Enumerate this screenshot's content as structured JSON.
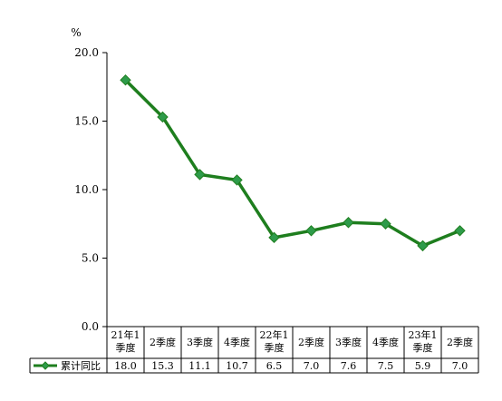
{
  "chart_data": {
    "type": "line",
    "unit_label": "%",
    "ylim": [
      0,
      20
    ],
    "yticks": [
      "0.0",
      "5.0",
      "10.0",
      "15.0",
      "20.0"
    ],
    "categories": [
      [
        "21年1",
        "季度"
      ],
      [
        "2季度"
      ],
      [
        "3季度"
      ],
      [
        "4季度"
      ],
      [
        "22年1",
        "季度"
      ],
      [
        "2季度"
      ],
      [
        "3季度"
      ],
      [
        "4季度"
      ],
      [
        "23年1",
        "季度"
      ],
      [
        "2季度"
      ]
    ],
    "series": [
      {
        "name": "累计同比",
        "values": [
          18.0,
          15.3,
          11.1,
          10.7,
          6.5,
          7.0,
          7.6,
          7.5,
          5.9,
          7.0
        ],
        "value_labels": [
          "18.0",
          "15.3",
          "11.1",
          "10.7",
          "6.5",
          "7.0",
          "7.6",
          "7.5",
          "5.9",
          "7.0"
        ],
        "color": "#1e7e1e",
        "marker_color": "#2e9b4a"
      }
    ],
    "grid": false,
    "legend": "table-row-left"
  }
}
